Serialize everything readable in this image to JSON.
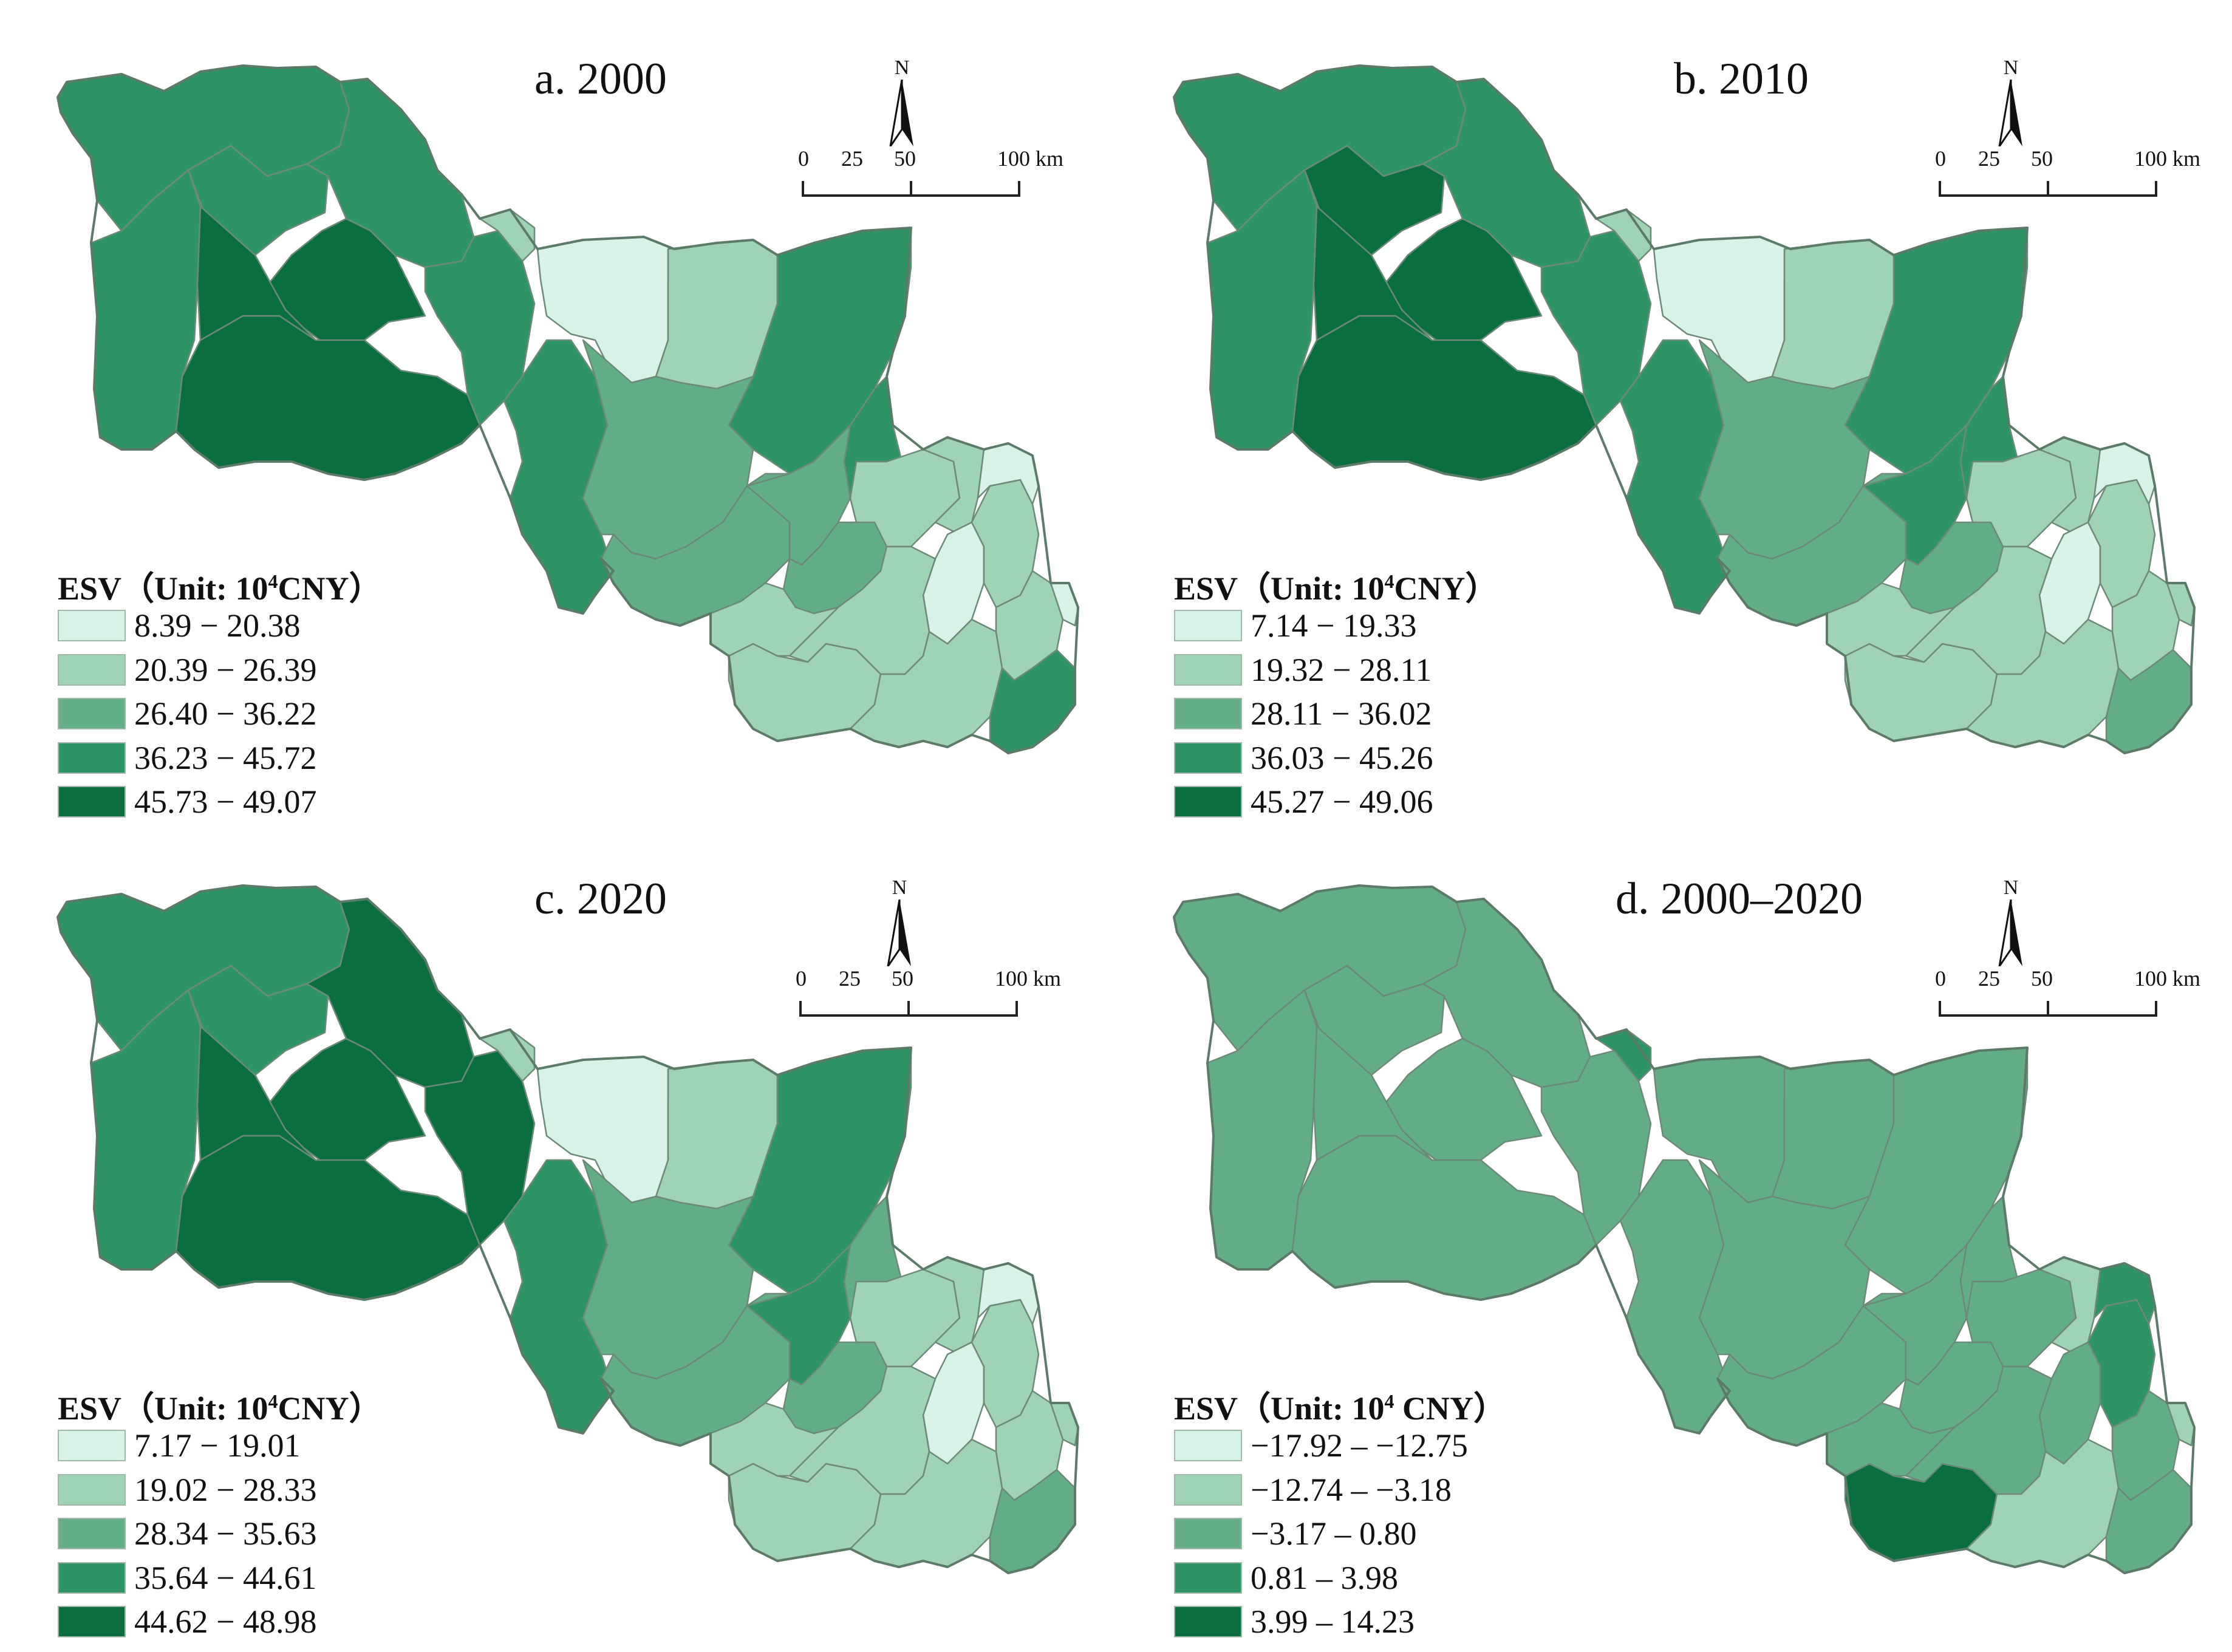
{
  "colors": {
    "c1": "#d7f2e6",
    "c2": "#9fd3b6",
    "c3": "#64ae87",
    "c4": "#2e9465",
    "c5": "#0b6e3f",
    "boundary": "#6d8a78"
  },
  "north_label": "N",
  "scale_labels": [
    "0",
    "25",
    "50",
    "100 km"
  ],
  "panels": [
    {
      "title": "a. 2000",
      "legend_title": "ESV（Unit: ",
      "legend_unit_base": "10",
      "legend_unit_sup": "4",
      "legend_unit_tail": "CNY）",
      "classes": [
        "8.39 − 20.38",
        "20.39 − 26.39",
        "26.40 − 36.22",
        "36.23 − 45.72",
        "45.73 − 49.07"
      ],
      "region_classes": [
        4,
        4,
        4,
        5,
        5,
        5,
        4,
        4,
        4,
        2,
        1,
        2,
        4,
        3,
        4,
        3,
        3,
        3,
        2,
        2,
        1,
        2,
        1,
        2,
        2,
        2,
        2,
        1,
        4,
        2
      ]
    },
    {
      "title": "b. 2010",
      "legend_title": "ESV（Unit: ",
      "legend_unit_base": "10",
      "legend_unit_sup": "4",
      "legend_unit_tail": "CNY）",
      "classes": [
        "7.14 − 19.33",
        "19.32 − 28.11",
        "28.11 − 36.02",
        "36.03 − 45.26",
        "45.27 − 49.06"
      ],
      "region_classes": [
        4,
        4,
        5,
        5,
        5,
        5,
        4,
        4,
        4,
        2,
        1,
        2,
        4,
        3,
        4,
        3,
        4,
        3,
        2,
        2,
        1,
        2,
        1,
        2,
        2,
        2,
        2,
        2,
        3,
        2
      ]
    },
    {
      "title": "c. 2020",
      "legend_title": "ESV（Unit: ",
      "legend_unit_base": "10",
      "legend_unit_sup": "4",
      "legend_unit_tail": "CNY）",
      "classes": [
        "7.17 − 19.01",
        "19.02 − 28.33",
        "28.34 − 35.63",
        "35.64 − 44.61",
        "44.62 − 48.98"
      ],
      "region_classes": [
        4,
        4,
        4,
        5,
        5,
        5,
        5,
        5,
        4,
        2,
        1,
        2,
        4,
        3,
        3,
        3,
        4,
        3,
        2,
        2,
        1,
        2,
        1,
        2,
        2,
        2,
        2,
        2,
        3,
        2
      ]
    },
    {
      "title": "d. 2000–2020",
      "legend_title": "ESV（Unit: ",
      "legend_unit_base": "10",
      "legend_unit_sup": "4",
      "legend_unit_tail": " CNY）",
      "classes": [
        "−17.92 – −12.75",
        "−12.74 – −3.18",
        "−3.17 – 0.80",
        "0.81 – 3.98",
        "3.99 – 14.23"
      ],
      "region_classes": [
        3,
        3,
        3,
        3,
        3,
        3,
        3,
        3,
        3,
        4,
        3,
        3,
        3,
        3,
        3,
        3,
        3,
        3,
        3,
        2,
        3,
        4,
        4,
        5,
        3,
        2,
        3,
        2,
        3,
        3
      ]
    }
  ]
}
